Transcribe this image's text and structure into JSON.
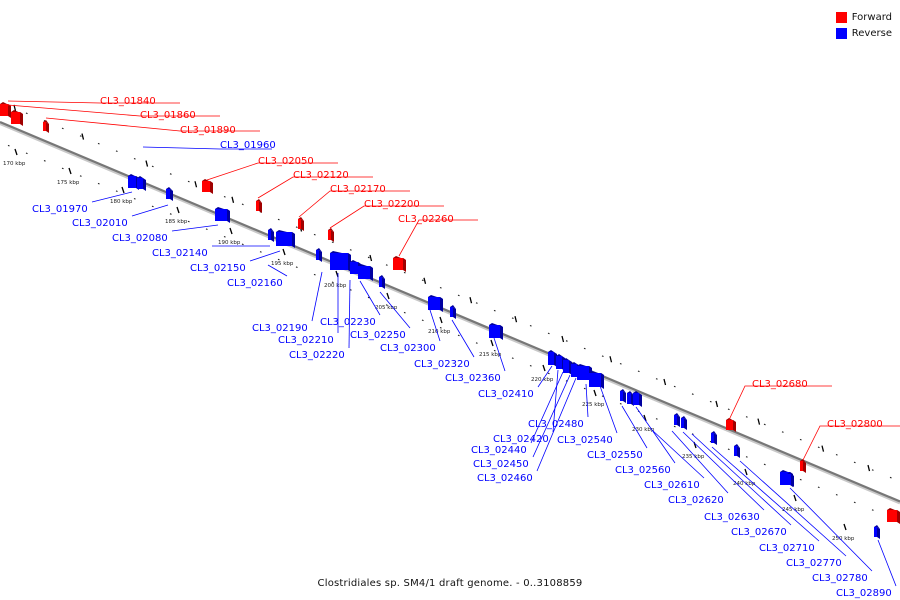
{
  "legend": {
    "forward": {
      "label": "Forward",
      "color": "#ff0000"
    },
    "reverse": {
      "label": "Reverse",
      "color": "#0000ff"
    }
  },
  "caption": "Clostridiales sp. SM4/1 draft genome. - 0..3108859",
  "ticks": [
    "170 kbp",
    "175 kbp",
    "180 kbp",
    "185 kbp",
    "190 kbp",
    "195 kbp",
    "200 kbp",
    "205 kbp",
    "210 kbp",
    "215 kbp",
    "220 kbp",
    "225 kbp",
    "230 kbp",
    "235 kbp",
    "240 kbp",
    "245 kbp",
    "250 kbp"
  ],
  "forward_genes": [
    "CL3_01840",
    "CL3_01860",
    "CL3_01890",
    "CL3_02050",
    "CL3_02120",
    "CL3_02170",
    "CL3_02200",
    "CL3_02260",
    "CL3_02680",
    "CL3_02800"
  ],
  "reverse_genes_top": [
    "CL3_01960"
  ],
  "reverse_genes": [
    "CL3_01970",
    "CL3_02010",
    "CL3_02080",
    "CL3_02140",
    "CL3_02150",
    "CL3_02160",
    "CL3_02190",
    "CL3_02210",
    "CL3_02220",
    "CL3_02230",
    "CL3_02250",
    "CL3_02300",
    "CL3_02320",
    "CL3_02360",
    "CL3_02410",
    "CL3_02420",
    "CL3_02440",
    "CL3_02450",
    "CL3_02460",
    "CL3_02480",
    "CL3_02540",
    "CL3_02550",
    "CL3_02560",
    "CL3_02610",
    "CL3_02620",
    "CL3_02630",
    "CL3_02670",
    "CL3_02710",
    "CL3_02770",
    "CL3_02780",
    "CL3_02890"
  ]
}
